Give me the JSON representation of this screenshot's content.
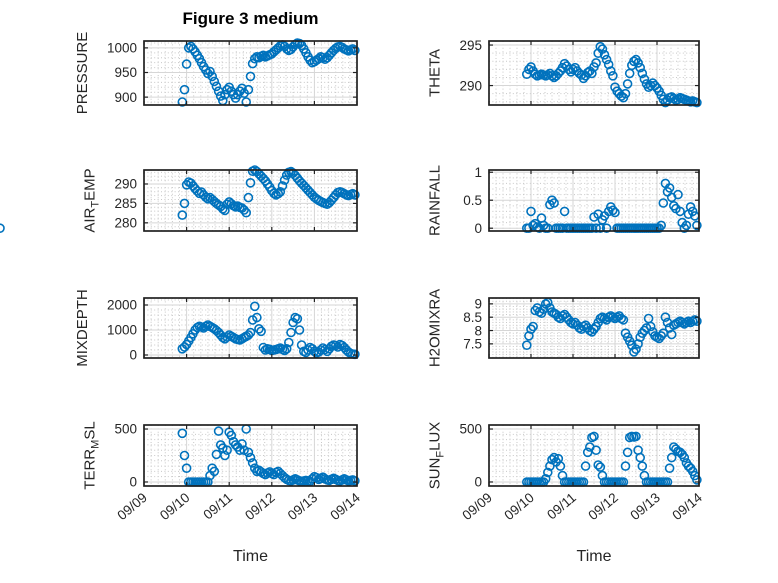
{
  "chart_data": {
    "type": "scatter",
    "title": "Figure 3 medium",
    "xlabel": "Time",
    "marker": {
      "shape": "open-circle",
      "color": "#0072BD",
      "radius_px": 4,
      "stroke_px": 1.6
    },
    "style": {
      "axes_color": "#222222",
      "major_grid_color": "#d6d6d6",
      "minor_grid_color": "#c8c8c8",
      "tick_text_color": "#262626",
      "background": "#ffffff"
    },
    "x_axis": {
      "lim_days": [
        0,
        5
      ],
      "tick_values_days": [
        0,
        1,
        2,
        3,
        4,
        5
      ],
      "tick_labels": [
        "09/09",
        "09/10",
        "09/11",
        "09/12",
        "09/13",
        "09/14"
      ],
      "minor_divisions_per_day": 6,
      "tick_label_rotation_deg": 40
    },
    "t_days": [
      0.9,
      0.95,
      1,
      1.05,
      1.1,
      1.15,
      1.2,
      1.25,
      1.3,
      1.35,
      1.4,
      1.45,
      1.5,
      1.55,
      1.6,
      1.65,
      1.7,
      1.75,
      1.8,
      1.85,
      1.9,
      1.95,
      2,
      2.05,
      2.1,
      2.15,
      2.2,
      2.25,
      2.3,
      2.35,
      2.4,
      2.45,
      2.5,
      2.55,
      2.6,
      2.65,
      2.7,
      2.75,
      2.8,
      2.85,
      2.9,
      2.95,
      3,
      3.05,
      3.1,
      3.15,
      3.2,
      3.25,
      3.3,
      3.35,
      3.4,
      3.45,
      3.5,
      3.55,
      3.6,
      3.65,
      3.7,
      3.75,
      3.8,
      3.85,
      3.9,
      3.95,
      4,
      4.05,
      4.1,
      4.15,
      4.2,
      4.25,
      4.3,
      4.35,
      4.4,
      4.45,
      4.5,
      4.55,
      4.6,
      4.65,
      4.7,
      4.75,
      4.8,
      4.85,
      4.9,
      4.95
    ],
    "subplots": [
      {
        "name": "pressure",
        "row": 0,
        "col": 0,
        "ylabel_parts": [
          {
            "t": "PRESSURE"
          }
        ],
        "yticks": [
          900,
          950,
          1000
        ],
        "ytick_labels": [
          "900",
          "950",
          "1000"
        ],
        "ylim": [
          884,
          1014
        ],
        "y_minor_step": 10,
        "values": [
          890,
          915,
          967,
          1000,
          1003,
          998,
          992,
          985,
          978,
          970,
          962,
          955,
          948,
          952,
          942,
          932,
          922,
          912,
          902,
          893,
          905,
          915,
          920,
          912,
          905,
          898,
          905,
          912,
          918,
          908,
          890,
          915,
          942,
          968,
          978,
          982,
          980,
          983,
          985,
          982,
          984,
          986,
          988,
          992,
          996,
          1000,
          1004,
          1006,
          1003,
          998,
          995,
          997,
          1002,
          1007,
          1010,
          1009,
          1005,
          998,
          990,
          982,
          975,
          970,
          972,
          975,
          978,
          982,
          980,
          977,
          980,
          985,
          990,
          995,
          999,
          1002,
          1003,
          1001,
          998,
          996,
          994,
          996,
          998,
          995
        ]
      },
      {
        "name": "theta",
        "row": 0,
        "col": 1,
        "ylabel_parts": [
          {
            "t": "THETA"
          }
        ],
        "yticks": [
          290,
          295
        ],
        "ytick_labels": [
          "290",
          "295"
        ],
        "ylim": [
          287.6,
          295.5
        ],
        "y_minor_step": 1,
        "values": [
          291.4,
          292,
          292.3,
          291.8,
          291.4,
          291.2,
          291.3,
          291.4,
          291.3,
          291.2,
          291.3,
          291.5,
          291.2,
          291,
          291.2,
          291.5,
          291.8,
          292.2,
          292.7,
          292.4,
          292,
          291.7,
          292,
          292.2,
          291.8,
          291.5,
          291.3,
          290.9,
          291.2,
          291.6,
          291.8,
          291.5,
          292.3,
          292.8,
          294,
          294.8,
          294.5,
          293.8,
          293.2,
          292.6,
          291.8,
          291.2,
          289.8,
          289.3,
          289,
          288.7,
          288.5,
          289,
          290.2,
          291.5,
          292.5,
          293,
          293.2,
          292.8,
          292.2,
          291.5,
          290.8,
          290.2,
          289.8,
          290,
          290.3,
          290,
          289.7,
          289.3,
          288.8,
          288.3,
          287.9,
          288.2,
          288.5,
          288.6,
          288.4,
          288.2,
          288.3,
          288.5,
          288.4,
          288.3,
          288.2,
          288.1,
          288,
          288.1,
          288,
          287.9
        ]
      },
      {
        "name": "air-temp",
        "row": 1,
        "col": 0,
        "ylabel_parts": [
          {
            "t": "AIR"
          },
          {
            "sub": "T"
          },
          {
            "t": "EMP"
          }
        ],
        "yticks": [
          280,
          285,
          290
        ],
        "ytick_labels": [
          "280",
          "285",
          "290"
        ],
        "ylim": [
          277.9,
          293.6
        ],
        "y_minor_step": 1,
        "values": [
          282,
          285,
          289.8,
          290.5,
          290.2,
          289.5,
          288.8,
          288.2,
          287.6,
          287.9,
          287.2,
          286.6,
          286.2,
          286.5,
          286,
          285.5,
          285,
          284.6,
          284.2,
          283.6,
          283.2,
          284.8,
          285.4,
          284.9,
          284.4,
          284.1,
          284.3,
          284,
          283.8,
          283.3,
          282.6,
          286.5,
          290.3,
          293.3,
          293.6,
          293.2,
          292.6,
          292,
          291.4,
          290.8,
          290,
          289.2,
          288.3,
          287.6,
          287.2,
          287.5,
          288,
          289.5,
          291,
          292.3,
          293,
          293.2,
          292.8,
          292.2,
          291.5,
          290.8,
          290.2,
          289.6,
          289,
          288.4,
          287.8,
          287.2,
          286.6,
          286.2,
          285.8,
          285.5,
          285.2,
          285,
          284.8,
          285.2,
          285.8,
          286.5,
          287.2,
          287.8,
          288,
          287.8,
          287.5,
          287.2,
          287,
          287.3,
          287.5,
          287.2
        ]
      },
      {
        "name": "rainfall",
        "row": 1,
        "col": 1,
        "ylabel_parts": [
          {
            "t": "RAINFALL"
          }
        ],
        "yticks": [
          0,
          0.5,
          1
        ],
        "ytick_labels": [
          "0",
          "0.5",
          "1"
        ],
        "ylim": [
          -0.05,
          1.04
        ],
        "y_minor_step": 0.1,
        "values": [
          0,
          0,
          0.3,
          0.05,
          0.08,
          0.02,
          0,
          0.18,
          0.05,
          0,
          0,
          0.42,
          0.5,
          0.45,
          0,
          0,
          0,
          0,
          0.3,
          0,
          0,
          0,
          0,
          0,
          0,
          0,
          0,
          0,
          0,
          0,
          0,
          0,
          0.2,
          0,
          0.25,
          0,
          0.15,
          0.22,
          0,
          0.3,
          0.38,
          0.32,
          0.28,
          0,
          0,
          0,
          0,
          0,
          0,
          0,
          0,
          0,
          0,
          0,
          0,
          0,
          0,
          0,
          0,
          0,
          0,
          0,
          0,
          0,
          0.05,
          0.45,
          0.8,
          0.65,
          0.72,
          0.55,
          0.4,
          0.35,
          0.6,
          0.3,
          0.1,
          0,
          0.05,
          0.25,
          0.38,
          0.3,
          0.22,
          0.05,
          0
        ]
      },
      {
        "name": "mixdepth",
        "row": 2,
        "col": 0,
        "ylabel_parts": [
          {
            "t": "MIXDEPTH"
          }
        ],
        "yticks": [
          0,
          1000,
          2000
        ],
        "ytick_labels": [
          "0",
          "1000",
          "2000"
        ],
        "ylim": [
          -120,
          2280
        ],
        "y_minor_step": 200,
        "values": [
          250,
          320,
          420,
          560,
          700,
          850,
          1000,
          1100,
          1150,
          1120,
          1080,
          1150,
          1200,
          1150,
          1100,
          1050,
          980,
          900,
          800,
          700,
          650,
          720,
          800,
          750,
          700,
          650,
          620,
          600,
          650,
          700,
          750,
          800,
          900,
          1400,
          1950,
          1500,
          1050,
          950,
          300,
          200,
          250,
          230,
          180,
          200,
          220,
          250,
          280,
          230,
          180,
          250,
          500,
          900,
          1300,
          1500,
          1450,
          1000,
          400,
          150,
          100,
          200,
          300,
          250,
          150,
          80,
          120,
          200,
          280,
          220,
          150,
          250,
          350,
          400,
          380,
          320,
          420,
          380,
          300,
          200,
          120,
          60,
          40,
          30
        ]
      },
      {
        "name": "h2omixra",
        "row": 2,
        "col": 1,
        "ylabel_parts": [
          {
            "t": "H2OMIXRA"
          }
        ],
        "yticks": [
          7.5,
          8,
          8.5,
          9
        ],
        "ytick_labels": [
          "7.5",
          "8",
          "8.5",
          "9"
        ],
        "ylim": [
          6.97,
          9.22
        ],
        "y_minor_step": 0.1,
        "values": [
          7.45,
          7.8,
          8.05,
          8.15,
          8.75,
          8.85,
          8.7,
          8.65,
          8.8,
          9,
          9.05,
          8.85,
          8.7,
          8.65,
          8.6,
          8.5,
          8.45,
          8.55,
          8.6,
          8.5,
          8.4,
          8.3,
          8.25,
          8.3,
          8.2,
          8.1,
          8.05,
          8.15,
          8.2,
          8.1,
          8,
          7.95,
          8.05,
          8.15,
          8.3,
          8.45,
          8.5,
          8.45,
          8.4,
          8.5,
          8.55,
          8.5,
          8.45,
          8.5,
          8.55,
          8.45,
          8.4,
          7.9,
          7.75,
          7.6,
          7.45,
          7.2,
          7.3,
          7.5,
          7.75,
          7.9,
          8,
          8.1,
          8.45,
          8.15,
          7.95,
          7.8,
          7.75,
          7.7,
          7.8,
          7.9,
          8.5,
          8.3,
          8.1,
          7.85,
          8.2,
          8.25,
          8.3,
          8.35,
          8.3,
          8.25,
          8.3,
          8.35,
          8.3,
          8.35,
          8.4,
          8.35
        ]
      },
      {
        "name": "terr-msl",
        "row": 3,
        "col": 0,
        "ylabel_parts": [
          {
            "t": "TERR"
          },
          {
            "sub": "M"
          },
          {
            "t": "SL"
          }
        ],
        "yticks": [
          0,
          500
        ],
        "ytick_labels": [
          "0",
          "500"
        ],
        "ylim": [
          -38,
          538
        ],
        "y_minor_step": 50,
        "values": [
          460,
          250,
          130,
          0,
          0,
          0,
          0,
          0,
          0,
          0,
          0,
          0,
          0,
          60,
          130,
          100,
          260,
          480,
          350,
          320,
          250,
          300,
          470,
          440,
          380,
          350,
          330,
          300,
          360,
          300,
          500,
          280,
          230,
          180,
          130,
          100,
          110,
          95,
          80,
          70,
          85,
          95,
          80,
          70,
          90,
          100,
          80,
          60,
          40,
          25,
          15,
          10,
          20,
          30,
          20,
          10,
          5,
          10,
          15,
          10,
          5,
          30,
          50,
          40,
          25,
          35,
          45,
          30,
          20,
          15,
          25,
          35,
          25,
          15,
          10,
          20,
          30,
          20,
          10,
          15,
          20,
          10
        ]
      },
      {
        "name": "sun-flux",
        "row": 3,
        "col": 1,
        "ylabel_parts": [
          {
            "t": "SUN"
          },
          {
            "sub": "F"
          },
          {
            "t": "LUX"
          }
        ],
        "yticks": [
          0,
          500
        ],
        "ytick_labels": [
          "0",
          "500"
        ],
        "ylim": [
          -38,
          538
        ],
        "y_minor_step": 50,
        "values": [
          0,
          0,
          0,
          0,
          0,
          0,
          0,
          0,
          0,
          30,
          90,
          150,
          210,
          230,
          190,
          220,
          150,
          60,
          0,
          0,
          0,
          0,
          0,
          0,
          0,
          0,
          0,
          0,
          150,
          280,
          330,
          420,
          430,
          300,
          160,
          140,
          60,
          0,
          0,
          0,
          0,
          0,
          0,
          0,
          0,
          0,
          0,
          150,
          280,
          420,
          430,
          425,
          430,
          300,
          230,
          150,
          60,
          0,
          0,
          0,
          0,
          0,
          0,
          0,
          0,
          0,
          0,
          0,
          130,
          230,
          330,
          310,
          290,
          280,
          260,
          230,
          180,
          150,
          130,
          100,
          60,
          20
        ]
      }
    ]
  }
}
